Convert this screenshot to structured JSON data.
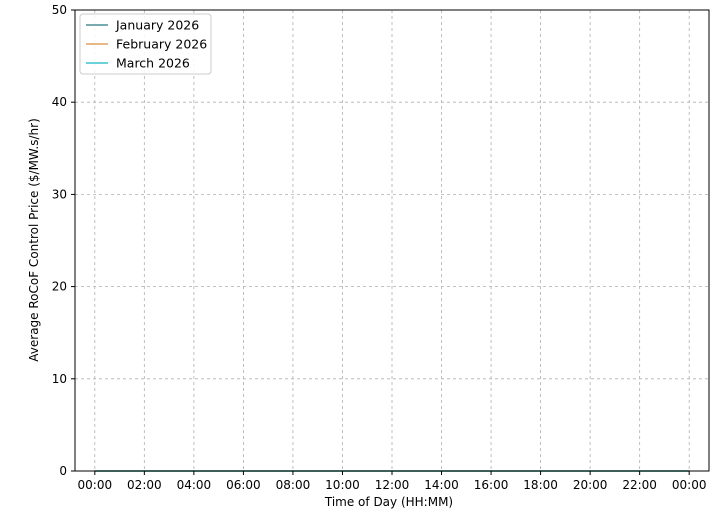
{
  "chart_data": {
    "type": "line",
    "xlabel": "Time of Day (HH:MM)",
    "ylabel": "Average RoCoF Control Price ($/MW.s/hr)",
    "x_ticks": [
      "00:00",
      "02:00",
      "04:00",
      "06:00",
      "08:00",
      "10:00",
      "12:00",
      "14:00",
      "16:00",
      "18:00",
      "20:00",
      "22:00",
      "00:00"
    ],
    "y_ticks": [
      0,
      10,
      20,
      30,
      40,
      50
    ],
    "ylim": [
      0,
      50
    ],
    "xlim_hours": [
      -0.8,
      24.8
    ],
    "grid": true,
    "legend_position": "top-left",
    "series": [
      {
        "name": "January 2026",
        "color": "#4a8f95",
        "x_hours": [
          0,
          24
        ],
        "values": [
          0,
          0
        ]
      },
      {
        "name": "February 2026",
        "color": "#e0a060",
        "x_hours": [
          0,
          24
        ],
        "values": [
          0,
          0
        ]
      },
      {
        "name": "March 2026",
        "color": "#38c4cc",
        "x_hours": [
          0,
          24
        ],
        "values": [
          0,
          0
        ]
      }
    ]
  }
}
